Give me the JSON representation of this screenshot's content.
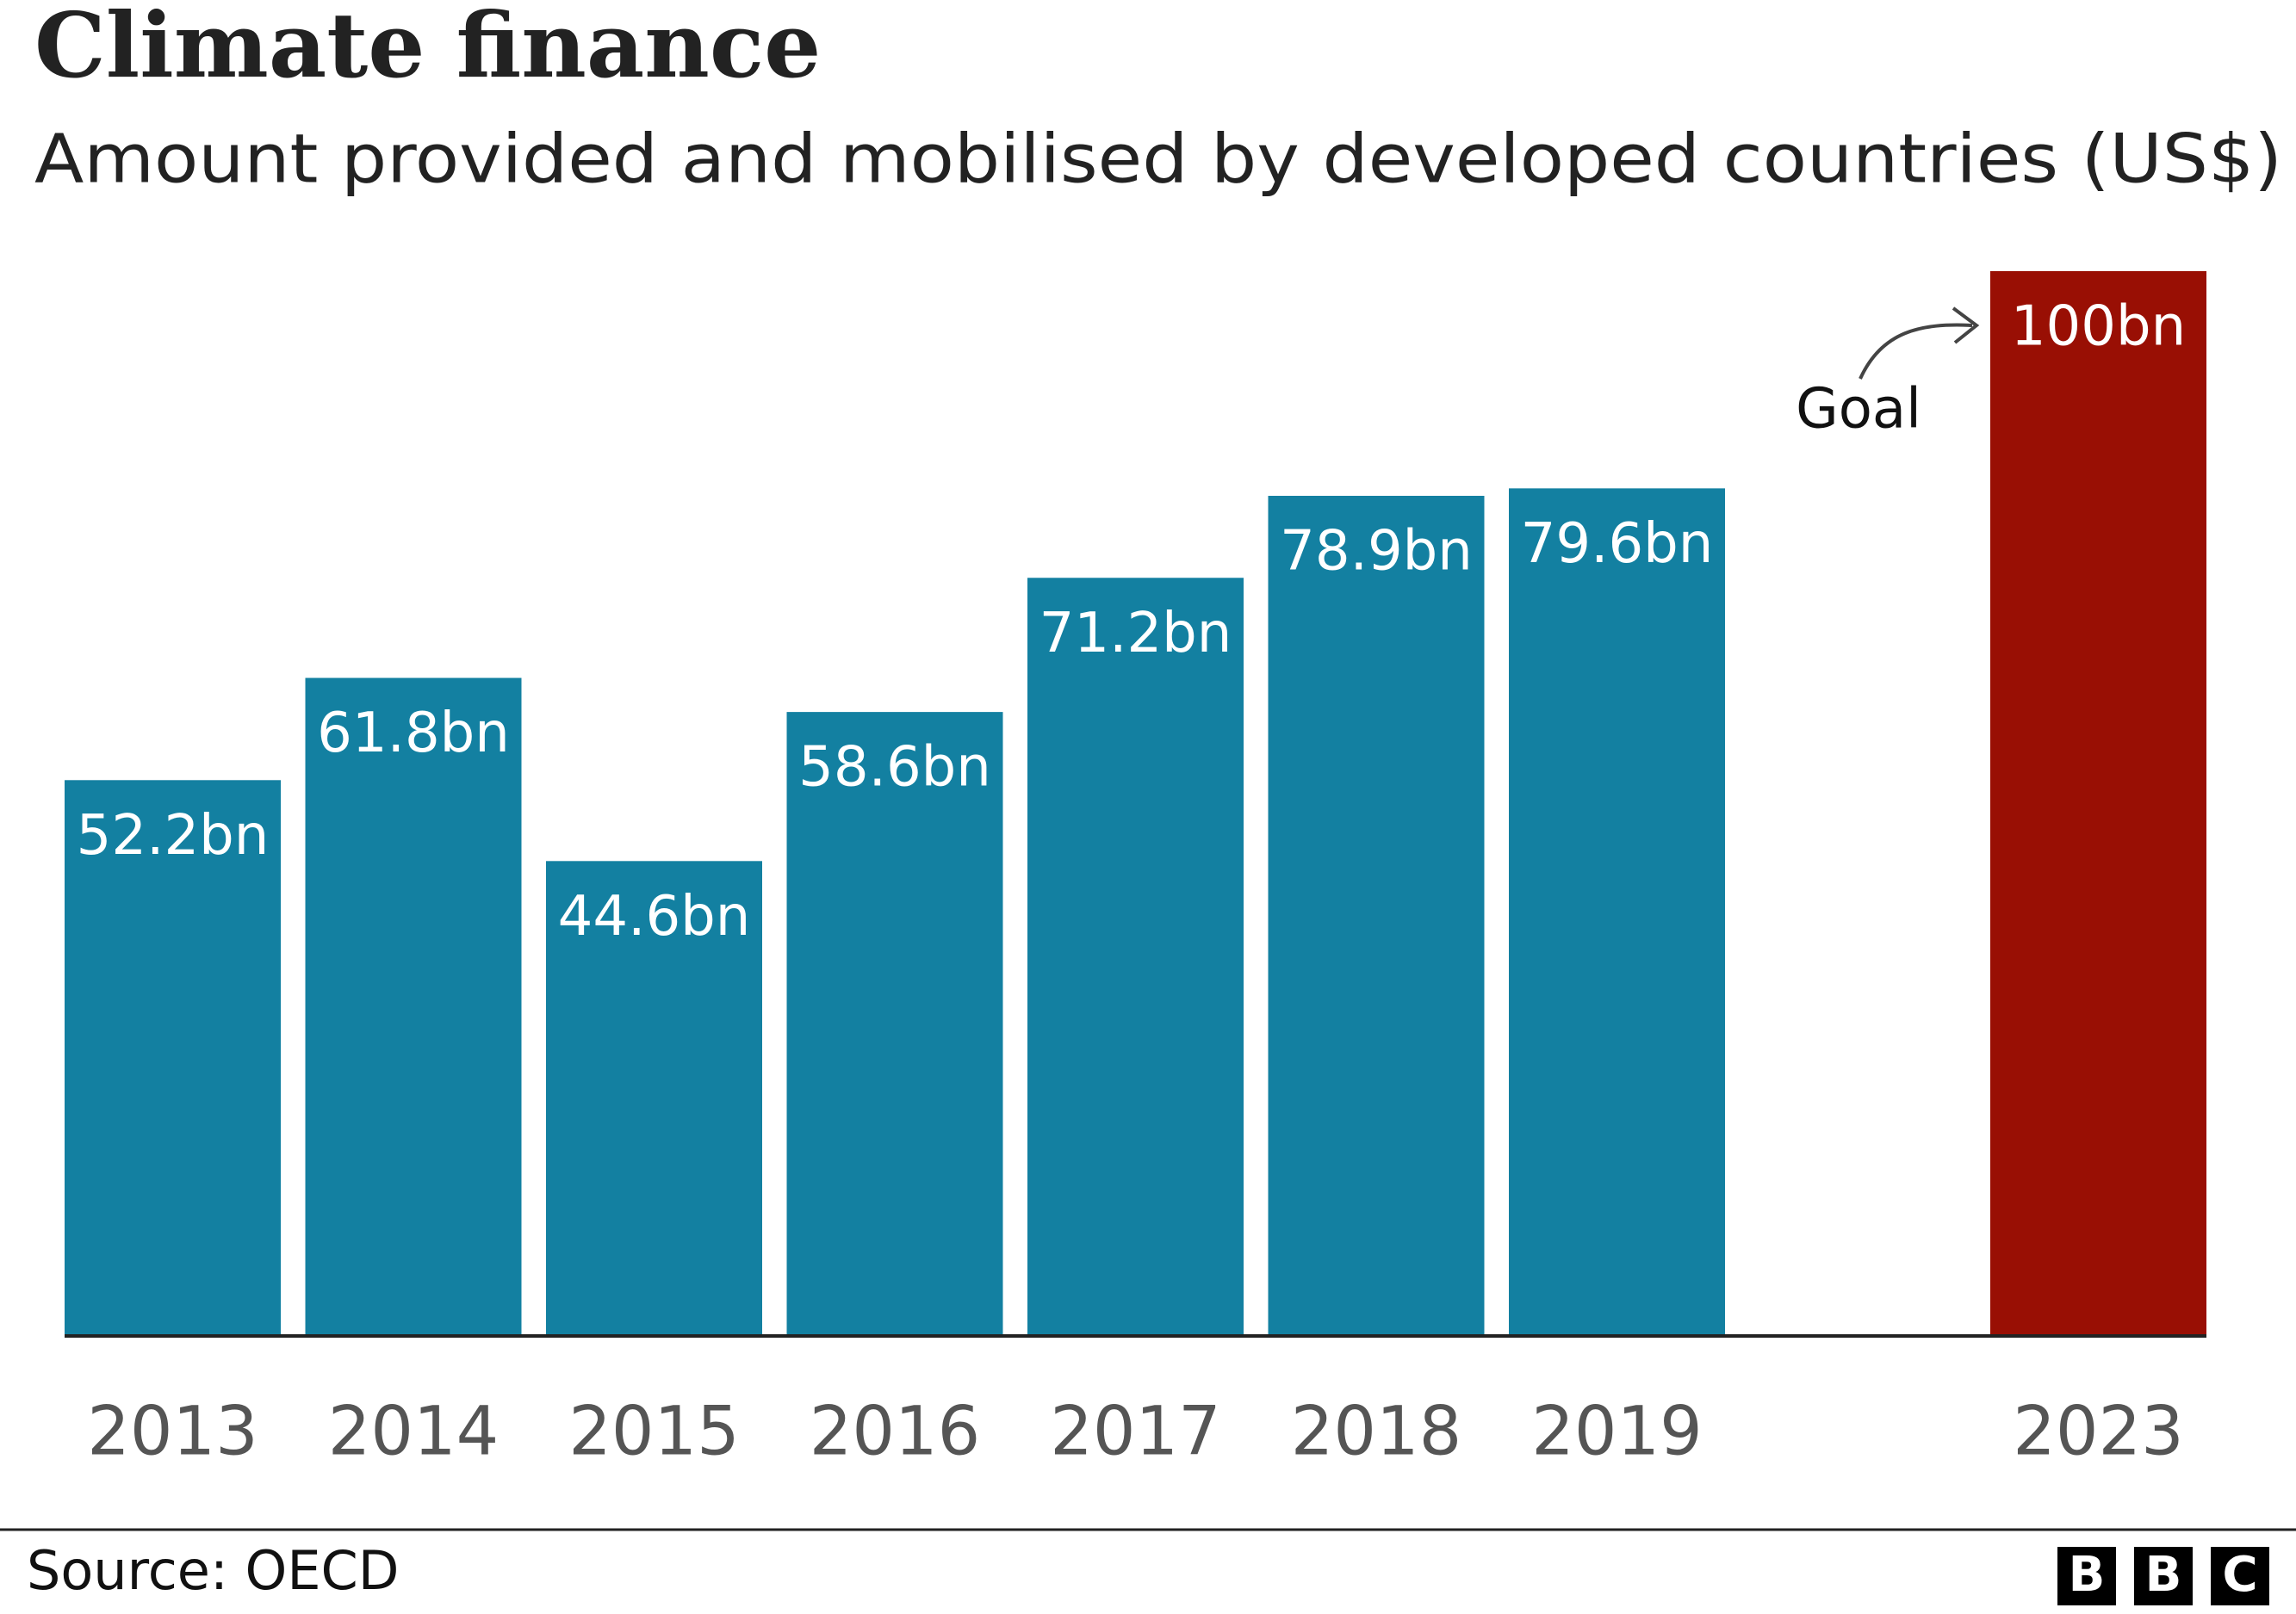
{
  "chart_data": {
    "type": "bar",
    "title": "Climate finance",
    "subtitle": "Amount provided and mobilised by developed countries (US$)",
    "categories": [
      "2013",
      "2014",
      "2015",
      "2016",
      "2017",
      "2018",
      "2019",
      null,
      "2023"
    ],
    "values": [
      52.2,
      61.8,
      44.6,
      58.6,
      71.2,
      78.9,
      79.6,
      null,
      100
    ],
    "value_labels": [
      "52.2bn",
      "61.8bn",
      "44.6bn",
      "58.6bn",
      "71.2bn",
      "78.9bn",
      "79.6bn",
      null,
      "100bn"
    ],
    "colors": [
      "#1380a1",
      "#1380a1",
      "#1380a1",
      "#1380a1",
      "#1380a1",
      "#1380a1",
      "#1380a1",
      null,
      "#990f04"
    ],
    "ylim": [
      0,
      100
    ],
    "annotation": "Goal",
    "source": "Source: OECD",
    "logo": [
      "B",
      "B",
      "C"
    ]
  }
}
